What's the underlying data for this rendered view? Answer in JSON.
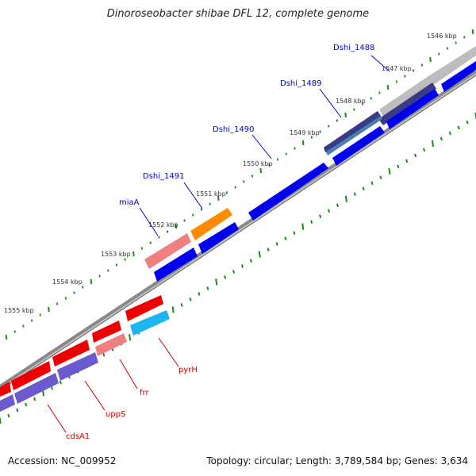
{
  "title": "Dinoroseobacter shibae DFL 12, complete genome",
  "footer": {
    "accession": "Accession: NC_009952",
    "summary": "Topology: circular; Length: 3,789,584 bp; Genes: 3,634"
  },
  "ticks": [
    "1546 kbp",
    "1547 kbp",
    "1548 kbp",
    "1549 kbp",
    "1550 kbp",
    "1551 kbp",
    "1552 kbp",
    "1553 kbp",
    "1554 kbp",
    "1555 kbp"
  ],
  "gene_labels_outer": [
    "Dshi_1488",
    "Dshi_1489",
    "Dshi_1490",
    "Dshi_1491",
    "miaA"
  ],
  "gene_labels_inner": [
    "pyrH",
    "frr",
    "uppS",
    "cdsA1"
  ],
  "colors": {
    "forward": "#0000ee",
    "reverse": "#ee0000",
    "gene_light_red": "#f08080",
    "gene_orange": "#ff8c00",
    "gene_cyan": "#1eb4f0",
    "gene_purple": "#6a5acd",
    "gene_steel": "#4a7fb0",
    "gene_navy": "#3a3a8a",
    "gene_gray": "#c0c0c0",
    "tick_green": "#1a8a1a",
    "backbone": "#888888"
  }
}
